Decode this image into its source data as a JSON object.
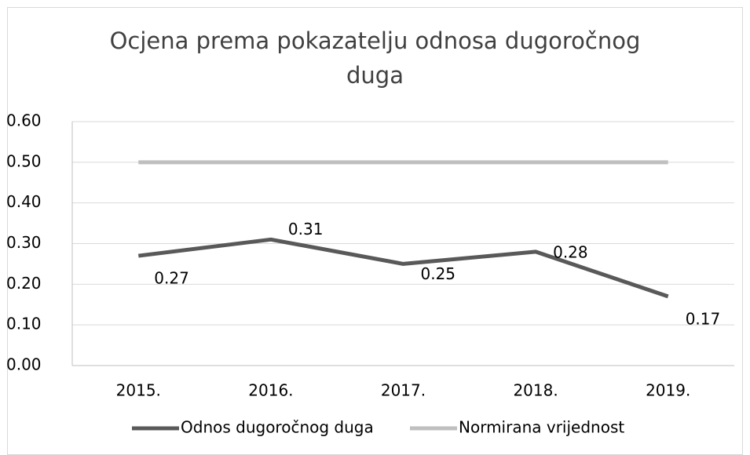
{
  "chart_data": {
    "type": "line",
    "title": "Ocjena prema pokazatelju odnosa dugoročnog duga",
    "categories": [
      "2015.",
      "2016.",
      "2017.",
      "2018.",
      "2019."
    ],
    "series": [
      {
        "name": "Odnos dugoročnog duga",
        "color": "#595959",
        "values": [
          0.27,
          0.31,
          0.25,
          0.28,
          0.17
        ]
      },
      {
        "name": "Normirana vrijednost",
        "color": "#bfbfbf",
        "values": [
          0.5,
          0.5,
          0.5,
          0.5,
          0.5
        ]
      }
    ],
    "data_labels_series": 0,
    "ylim": [
      0,
      0.6
    ],
    "yticks": [
      {
        "value": 0,
        "label": "0.00"
      },
      {
        "value": 0.1,
        "label": "0.10"
      },
      {
        "value": 0.2,
        "label": "0.20"
      },
      {
        "value": 0.3,
        "label": "0.30"
      },
      {
        "value": 0.4,
        "label": "0.40"
      },
      {
        "value": 0.5,
        "label": "0.50"
      },
      {
        "value": 0.6,
        "label": "0.60"
      }
    ],
    "grid": true,
    "legend": "bottom"
  }
}
